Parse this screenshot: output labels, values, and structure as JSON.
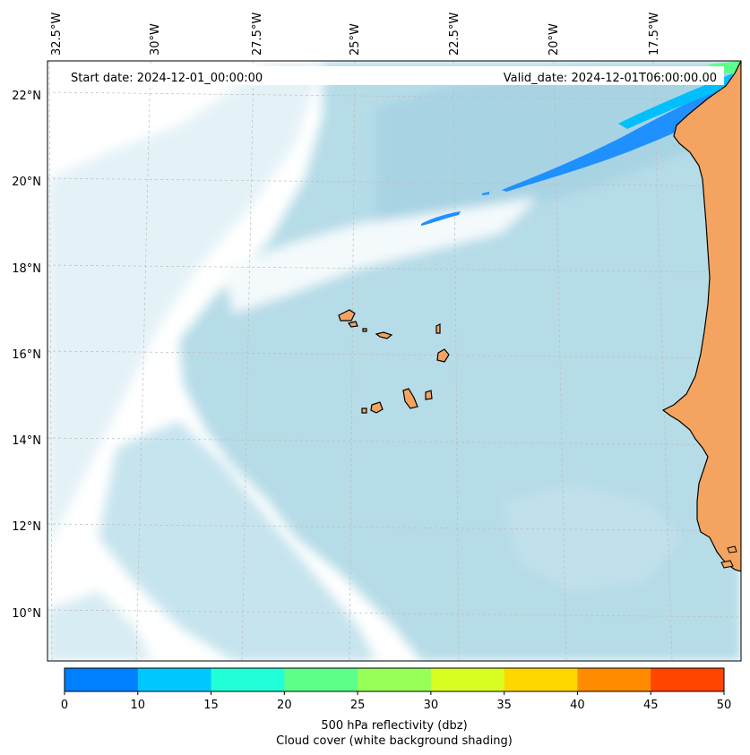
{
  "header": {
    "start_date": "Start date: 2024-12-01_00:00:00",
    "valid_date": "Valid_date: 2024-12-01T06:00:00.00"
  },
  "longitude_labels": [
    "32.5°W",
    "30°W",
    "27.5°W",
    "25°W",
    "22.5°W",
    "20°W",
    "17.5°W"
  ],
  "latitude_labels": [
    "22°N",
    "20°N",
    "18°N",
    "16°N",
    "14°N",
    "12°N",
    "10°N"
  ],
  "colorbar": {
    "ticks": [
      "0",
      "10",
      "15",
      "20",
      "25",
      "30",
      "35",
      "40",
      "45",
      "50"
    ],
    "colors": [
      "#007fff",
      "#00c8ff",
      "#20ffd8",
      "#5cff8a",
      "#96ff58",
      "#d8ff20",
      "#ffd700",
      "#ff8c00",
      "#ff4500"
    ],
    "label_line1": "500 hPa reflectivity (dbz)",
    "label_line2": "Cloud cover (white background shading)"
  },
  "colors": {
    "ocean_cloud": "#add8e6",
    "land": "#f4a460",
    "coastline": "#000000",
    "reflectivity_band": "#1e90ff"
  }
}
